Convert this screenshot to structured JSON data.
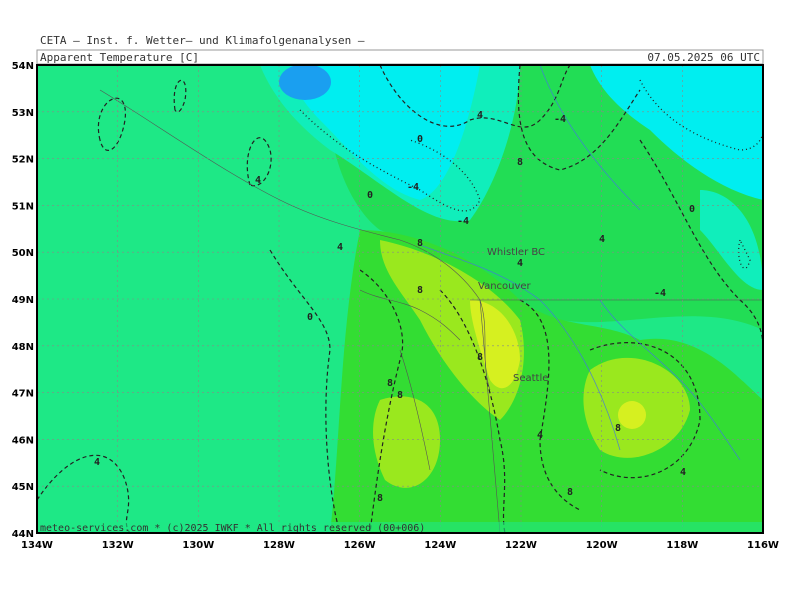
{
  "header": {
    "institute": "CETA – Inst. f. Wetter– und Klimafolgenanalysen –",
    "title": "Apparent Temperature [C]",
    "timestamp": "07.05.2025 06 UTC"
  },
  "map": {
    "lat_labels": [
      "54N",
      "53N",
      "52N",
      "51N",
      "50N",
      "49N",
      "48N",
      "47N",
      "46N",
      "45N",
      "44N"
    ],
    "lon_labels": [
      "134W",
      "132W",
      "130W",
      "128W",
      "126W",
      "124W",
      "122W",
      "120W",
      "118W",
      "116W"
    ],
    "cities": [
      "Whistler BC",
      "Vancouver",
      "Seattle"
    ],
    "contour_labels": [
      "4",
      "0",
      "4",
      "-4",
      "-4",
      "8",
      "4",
      "8",
      "0",
      "8",
      "8",
      "4",
      "4",
      "8",
      "0",
      "-4",
      "8",
      "4",
      "-4",
      "4",
      "0",
      "8",
      "8",
      "4",
      "8"
    ],
    "footer": "meteo-services.com * (c)2025 IWKF * All rights reserved (00+006)"
  }
}
